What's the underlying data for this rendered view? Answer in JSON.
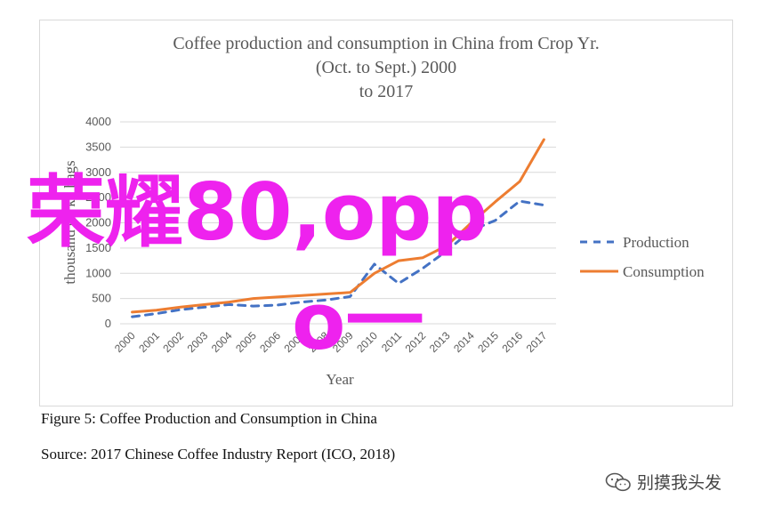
{
  "chart_data": {
    "type": "line",
    "title": [
      "Coffee  production and consumption in China from Crop Yr.",
      "(Oct. to Sept.) 2000",
      "to 2017"
    ],
    "xlabel": "Year",
    "ylabel": "thousand 60 kg bags",
    "categories": [
      "2000",
      "2001",
      "2002",
      "2003",
      "2004",
      "2005",
      "2006",
      "2007",
      "2008",
      "2009",
      "2010",
      "2011",
      "2012",
      "2013",
      "2014",
      "2015",
      "2016",
      "2017"
    ],
    "ylim": [
      0,
      4000
    ],
    "yticks": [
      "0",
      "500",
      "1000",
      "1500",
      "2000",
      "2500",
      "3000",
      "3500",
      "4000"
    ],
    "series": [
      {
        "name": "Production",
        "color": "#4472c4",
        "style": "dashed",
        "values": [
          140,
          200,
          280,
          330,
          380,
          350,
          370,
          430,
          470,
          540,
          1180,
          800,
          1100,
          1450,
          1850,
          2050,
          2430,
          2350
        ]
      },
      {
        "name": "Consumption",
        "color": "#ed7d31",
        "style": "solid",
        "values": [
          230,
          270,
          330,
          380,
          430,
          500,
          530,
          560,
          590,
          620,
          1000,
          1250,
          1310,
          1550,
          2000,
          2420,
          2820,
          3650
        ]
      }
    ],
    "legend_position": "right",
    "grid": true
  },
  "captions": {
    "figure": "Figure 5: Coffee Production and Consumption in China",
    "source": "Source: 2017 Chinese Coffee Industry Report (ICO, 2018)"
  },
  "overlay": {
    "line1": "荣耀80,opp",
    "line2": "o一"
  },
  "watermark": {
    "text": "别摸我头发",
    "icon": "wechat-icon"
  }
}
